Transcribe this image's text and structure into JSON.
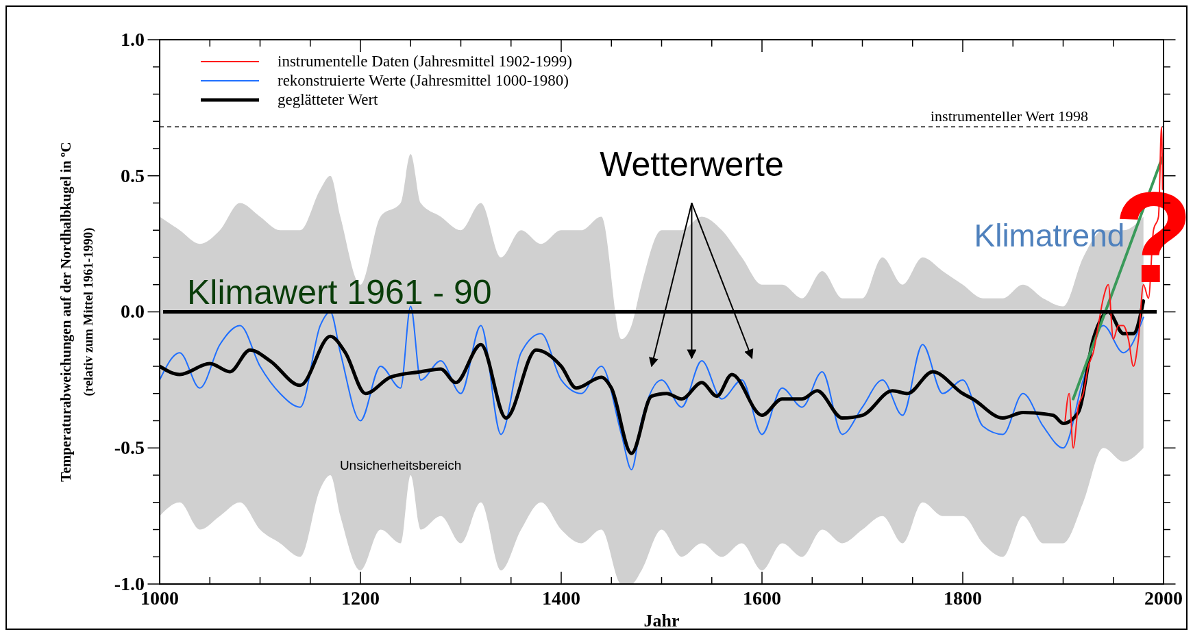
{
  "chart_data": {
    "type": "line",
    "xlabel": "Jahr",
    "ylabel": "Temperaturabweichungen auf der Nordhalbkugel in ºC\n(relativ zum Mittel 1961-1990)",
    "xlim": [
      1000,
      2000
    ],
    "ylim": [
      -1.0,
      1.0
    ],
    "xticks": [
      1000,
      {
        "value": 1050,
        "label": null
      },
      {
        "value": 1100,
        "label": null
      },
      {
        "value": 1150,
        "label": null
      },
      1200,
      {
        "value": 1250,
        "label": null
      },
      {
        "value": 1300,
        "label": null
      },
      {
        "value": 1350,
        "label": null
      },
      1400,
      {
        "value": 1450,
        "label": null
      },
      {
        "value": 1500,
        "label": null
      },
      {
        "value": 1550,
        "label": null
      },
      1600,
      {
        "value": 1650,
        "label": null
      },
      {
        "value": 1700,
        "label": null
      },
      {
        "value": 1750,
        "label": null
      },
      1800,
      {
        "value": 1850,
        "label": null
      },
      {
        "value": 1900,
        "label": null
      },
      {
        "value": 1950,
        "label": null
      },
      2000
    ],
    "yticks": [
      {
        "value": -1.0,
        "label": "-1.0"
      },
      {
        "value": -0.9,
        "label": null
      },
      {
        "value": -0.8,
        "label": null
      },
      {
        "value": -0.7,
        "label": null
      },
      {
        "value": -0.6,
        "label": null
      },
      {
        "value": -0.5,
        "label": "-0.5"
      },
      {
        "value": -0.4,
        "label": null
      },
      {
        "value": -0.3,
        "label": null
      },
      {
        "value": -0.2,
        "label": null
      },
      {
        "value": -0.1,
        "label": null
      },
      {
        "value": 0,
        "label": "0.0"
      },
      {
        "value": 0.1,
        "label": null
      },
      {
        "value": 0.2,
        "label": null
      },
      {
        "value": 0.3,
        "label": null
      },
      {
        "value": 0.4,
        "label": null
      },
      {
        "value": 0.5,
        "label": "0.5"
      },
      {
        "value": 0.6,
        "label": null
      },
      {
        "value": 0.7,
        "label": null
      },
      {
        "value": 0.8,
        "label": null
      },
      {
        "value": 0.9,
        "label": null
      },
      {
        "value": 1.0,
        "label": "1.0"
      }
    ],
    "legend": "top left",
    "grid": false,
    "line_style": "solid",
    "marker": "none",
    "series": [
      {
        "name": "rekonstruierte Werte (Jahresmittel 1000-1980)",
        "color": "#1f6fff",
        "x": [
          1000,
          1020,
          1040,
          1060,
          1080,
          1100,
          1120,
          1140,
          1160,
          1170,
          1180,
          1200,
          1220,
          1240,
          1250,
          1260,
          1280,
          1300,
          1320,
          1340,
          1360,
          1380,
          1400,
          1420,
          1440,
          1460,
          1470,
          1480,
          1500,
          1520,
          1540,
          1560,
          1580,
          1600,
          1620,
          1640,
          1660,
          1680,
          1700,
          1720,
          1740,
          1760,
          1780,
          1800,
          1820,
          1840,
          1860,
          1880,
          1900,
          1920,
          1940,
          1960,
          1980
        ],
        "values": [
          -0.25,
          -0.15,
          -0.28,
          -0.12,
          -0.05,
          -0.2,
          -0.3,
          -0.35,
          -0.05,
          0.0,
          -0.15,
          -0.4,
          -0.2,
          -0.28,
          0.02,
          -0.25,
          -0.18,
          -0.3,
          -0.05,
          -0.45,
          -0.15,
          -0.08,
          -0.25,
          -0.3,
          -0.2,
          -0.45,
          -0.58,
          -0.4,
          -0.25,
          -0.35,
          -0.18,
          -0.32,
          -0.25,
          -0.45,
          -0.28,
          -0.35,
          -0.22,
          -0.45,
          -0.35,
          -0.25,
          -0.38,
          -0.12,
          -0.3,
          -0.25,
          -0.42,
          -0.45,
          -0.3,
          -0.42,
          -0.5,
          -0.25,
          -0.05,
          -0.15,
          -0.02
        ],
        "upper": [
          0.35,
          0.3,
          0.25,
          0.3,
          0.4,
          0.35,
          0.3,
          0.3,
          0.45,
          0.5,
          0.35,
          0.1,
          0.35,
          0.4,
          0.58,
          0.4,
          0.35,
          0.3,
          0.4,
          0.2,
          0.3,
          0.25,
          0.3,
          0.3,
          0.35,
          -0.1,
          -0.05,
          0.1,
          0.3,
          0.3,
          0.35,
          0.3,
          0.2,
          0.1,
          0.1,
          0.05,
          0.15,
          0.05,
          0.05,
          0.2,
          0.1,
          0.2,
          0.15,
          0.1,
          0.05,
          0.05,
          0.1,
          0.05,
          0.02,
          0.2,
          0.3,
          0.3,
          0.35
        ],
        "lower": [
          -0.75,
          -0.7,
          -0.8,
          -0.75,
          -0.7,
          -0.8,
          -0.85,
          -0.9,
          -0.65,
          -0.6,
          -0.75,
          -0.95,
          -0.8,
          -0.85,
          -0.6,
          -0.8,
          -0.75,
          -0.85,
          -0.7,
          -0.95,
          -0.8,
          -0.7,
          -0.8,
          -0.85,
          -0.8,
          -1.0,
          -1.0,
          -0.95,
          -0.8,
          -0.9,
          -0.85,
          -0.9,
          -0.85,
          -0.95,
          -0.85,
          -0.9,
          -0.8,
          -0.85,
          -0.8,
          -0.75,
          -0.85,
          -0.7,
          -0.75,
          -0.75,
          -0.85,
          -0.9,
          -0.75,
          -0.85,
          -0.85,
          -0.7,
          -0.5,
          -0.55,
          -0.5
        ]
      },
      {
        "name": "instrumentelle Daten (Jahresmittel 1902-1999)",
        "color": "#ff1a1a",
        "x": [
          1902,
          1906,
          1910,
          1915,
          1920,
          1925,
          1930,
          1935,
          1940,
          1945,
          1950,
          1955,
          1960,
          1965,
          1970,
          1975,
          1980,
          1985,
          1990,
          1995,
          1998,
          1999
        ],
        "values": [
          -0.4,
          -0.3,
          -0.5,
          -0.35,
          -0.3,
          -0.2,
          -0.15,
          -0.05,
          0.05,
          0.1,
          -0.1,
          -0.05,
          -0.05,
          -0.1,
          -0.2,
          -0.1,
          0.1,
          0.05,
          0.3,
          0.35,
          0.68,
          0.45
        ]
      },
      {
        "name": "geglätteter Wert",
        "color": "#000000",
        "x": [
          1000,
          1020,
          1050,
          1070,
          1090,
          1110,
          1140,
          1170,
          1185,
          1205,
          1230,
          1260,
          1280,
          1295,
          1320,
          1345,
          1375,
          1400,
          1415,
          1440,
          1450,
          1470,
          1490,
          1505,
          1520,
          1540,
          1555,
          1570,
          1600,
          1620,
          1640,
          1655,
          1680,
          1700,
          1730,
          1745,
          1770,
          1800,
          1810,
          1840,
          1860,
          1890,
          1900,
          1915,
          1930,
          1945,
          1960,
          1970,
          1980
        ],
        "values": [
          -0.2,
          -0.23,
          -0.19,
          -0.22,
          -0.14,
          -0.18,
          -0.27,
          -0.09,
          -0.15,
          -0.3,
          -0.24,
          -0.22,
          -0.21,
          -0.26,
          -0.12,
          -0.39,
          -0.14,
          -0.2,
          -0.28,
          -0.24,
          -0.28,
          -0.52,
          -0.31,
          -0.3,
          -0.32,
          -0.26,
          -0.31,
          -0.23,
          -0.38,
          -0.32,
          -0.32,
          -0.29,
          -0.39,
          -0.38,
          -0.29,
          -0.3,
          -0.22,
          -0.3,
          -0.32,
          -0.39,
          -0.37,
          -0.38,
          -0.41,
          -0.37,
          -0.1,
          0.0,
          -0.08,
          -0.08,
          0.04
        ]
      },
      {
        "color": "#3a9a5a",
        "x": [
          1910,
          2000
        ],
        "values": [
          -0.32,
          0.58
        ]
      }
    ],
    "ref_lines": [
      {
        "axis": "y",
        "value": 0,
        "label": "Klimawert 1961 - 90",
        "color": "#000000",
        "line_style": "solid"
      },
      {
        "axis": "y",
        "value": 0.68,
        "label": "instrumenteller Wert 1998",
        "color": "#000000",
        "line_style": "dashed"
      }
    ],
    "annotations": [
      "Wetterwerte",
      {
        "text": "Klimatrend",
        "x": 1975,
        "y": 0.28
      },
      "?",
      "Unsicherheitsbereich"
    ]
  }
}
